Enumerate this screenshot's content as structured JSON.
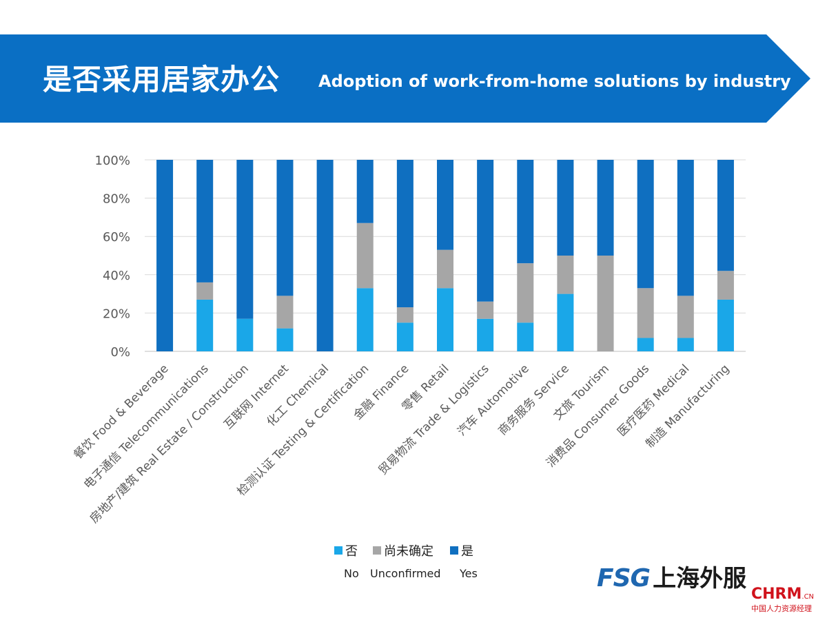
{
  "header": {
    "title_cn": "是否采用居家办公",
    "title_en": "Adoption of work-from-home solutions by industry"
  },
  "colors": {
    "banner": "#0a6fc4",
    "no": "#1aa7e8",
    "unconfirmed": "#a6a6a6",
    "yes": "#0f6fc0"
  },
  "chart_data": {
    "type": "bar",
    "stacked": true,
    "categories": [
      "餐饮 Food & Beverage",
      "电子通信 Telecommunications",
      "房地产/建筑 Real Estate / Construction",
      "互联网 Internet",
      "化工 Chemical",
      "检测认证 Testing & Certification",
      "金融 Finance",
      "零售 Retail",
      "贸易物流 Trade & Logistics",
      "汽车 Automotive",
      "商务服务 Service",
      "文旅 Tourism",
      "消费品 Consumer Goods",
      "医疗医药 Medical",
      "制造 Manufacturing"
    ],
    "series": [
      {
        "name": "否",
        "values": [
          0,
          27,
          17,
          12,
          0,
          33,
          15,
          33,
          17,
          15,
          30,
          0,
          7,
          7,
          27
        ]
      },
      {
        "name": "尚未确定",
        "values": [
          0,
          9,
          0,
          17,
          0,
          34,
          8,
          20,
          9,
          31,
          20,
          50,
          26,
          22,
          15
        ]
      },
      {
        "name": "是",
        "values": [
          100,
          64,
          83,
          71,
          100,
          33,
          77,
          47,
          74,
          54,
          50,
          50,
          67,
          71,
          58
        ]
      }
    ],
    "ylim": [
      0,
      100
    ],
    "yticks": [
      "0%",
      "20%",
      "40%",
      "60%",
      "80%",
      "100%"
    ],
    "grid": true,
    "legend_position": "bottom"
  },
  "legend": {
    "items": [
      {
        "cn": "否",
        "en": "No"
      },
      {
        "cn": "尚未确定",
        "en": "Unconfirmed"
      },
      {
        "cn": "是",
        "en": "Yes"
      }
    ]
  },
  "logo": {
    "fsg": "FSG",
    "cn": "上海外服"
  },
  "watermark": {
    "main": "CHRM",
    "domain": ".CN",
    "sub": "中国人力资源经理"
  }
}
